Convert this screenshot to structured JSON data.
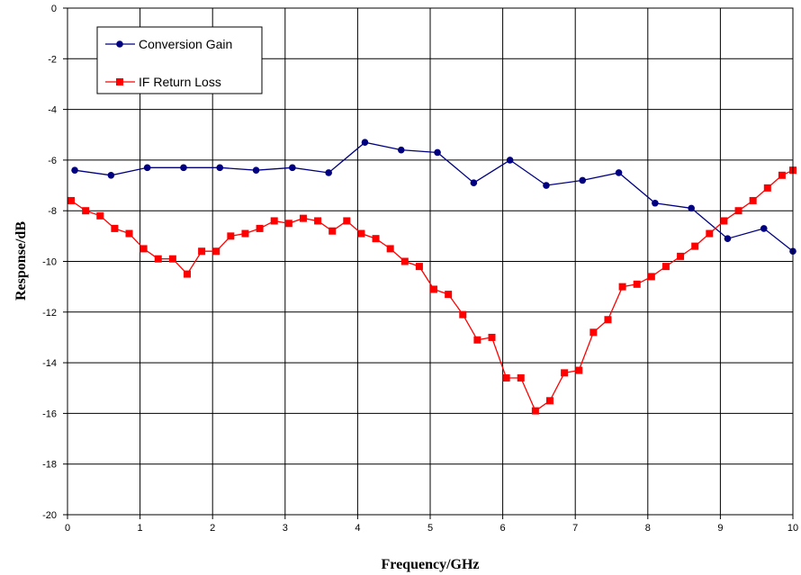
{
  "chart_data": {
    "type": "line",
    "title": "",
    "xlabel": "Frequency/GHz",
    "ylabel": "Response/dB",
    "xlim": [
      0,
      10
    ],
    "ylim": [
      -20,
      0
    ],
    "x_ticks": [
      "0",
      "1",
      "2",
      "3",
      "4",
      "5",
      "6",
      "7",
      "8",
      "9",
      "10"
    ],
    "y_ticks": [
      "0",
      "-2",
      "-4",
      "-6",
      "-8",
      "-10",
      "-12",
      "-14",
      "-16",
      "-18",
      "-20"
    ],
    "grid": true,
    "legend_position": "top-left",
    "series": [
      {
        "name": "Conversion Gain",
        "color": "#000080",
        "marker": "circle",
        "x": [
          0.1,
          0.6,
          1.1,
          1.6,
          2.1,
          2.6,
          3.1,
          3.6,
          4.1,
          4.6,
          5.1,
          5.6,
          6.1,
          6.6,
          7.1,
          7.6,
          8.1,
          8.6,
          9.1,
          9.6,
          10.0
        ],
        "y": [
          -6.4,
          -6.6,
          -6.3,
          -6.3,
          -6.3,
          -6.4,
          -6.3,
          -6.5,
          -5.3,
          -5.6,
          -5.7,
          -6.9,
          -6.0,
          -7.0,
          -6.8,
          -6.5,
          -7.7,
          -7.9,
          -9.1,
          -8.7,
          -9.6
        ]
      },
      {
        "name": "IF Return Loss",
        "color": "#ff0000",
        "marker": "square",
        "x": [
          0.05,
          0.25,
          0.45,
          0.65,
          0.85,
          1.05,
          1.25,
          1.45,
          1.65,
          1.85,
          2.05,
          2.25,
          2.45,
          2.65,
          2.85,
          3.05,
          3.25,
          3.45,
          3.65,
          3.85,
          4.05,
          4.25,
          4.45,
          4.65,
          4.85,
          5.05,
          5.25,
          5.45,
          5.65,
          5.85,
          6.05,
          6.25,
          6.45,
          6.65,
          6.85,
          7.05,
          7.25,
          7.45,
          7.65,
          7.85,
          8.05,
          8.25,
          8.45,
          8.65,
          8.85,
          9.05,
          9.25,
          9.45,
          9.65,
          9.85,
          10.0
        ],
        "y": [
          -7.6,
          -8.0,
          -8.2,
          -8.7,
          -8.9,
          -9.5,
          -9.9,
          -9.9,
          -10.5,
          -9.6,
          -9.6,
          -9.0,
          -8.9,
          -8.7,
          -8.4,
          -8.5,
          -8.3,
          -8.4,
          -8.8,
          -8.4,
          -8.9,
          -9.1,
          -9.5,
          -10.0,
          -10.2,
          -11.1,
          -11.3,
          -12.1,
          -13.1,
          -13.0,
          -14.6,
          -14.6,
          -15.9,
          -15.5,
          -14.4,
          -14.3,
          -12.8,
          -12.3,
          -11.0,
          -10.9,
          -10.6,
          -10.2,
          -9.8,
          -9.4,
          -8.9,
          -8.4,
          -8.0,
          -7.6,
          -7.1,
          -6.6,
          -6.4
        ]
      }
    ]
  }
}
